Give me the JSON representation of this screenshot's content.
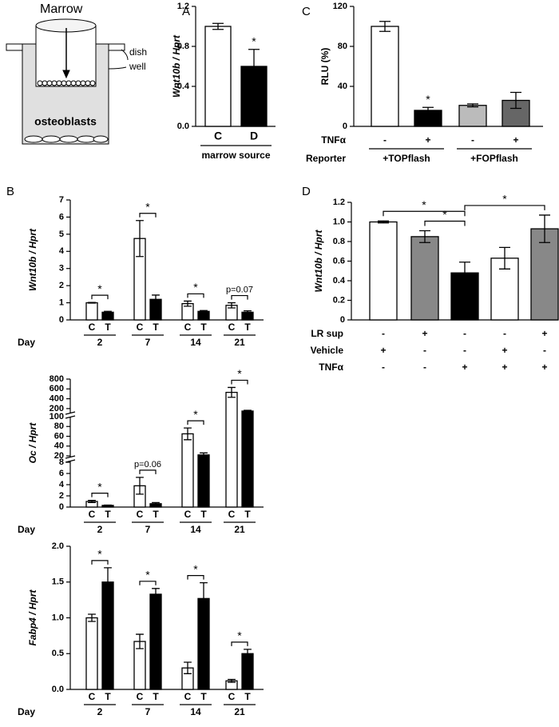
{
  "diagram": {
    "labels": {
      "marrow": "Marrow",
      "dish": "dish",
      "well": "well",
      "osteoblasts": "osteoblasts"
    }
  },
  "chart_data": [
    {
      "panel": "A",
      "type": "bar",
      "ylabel": "Wnt10b / Hprt",
      "categories": [
        "C",
        "D"
      ],
      "values": [
        1.0,
        0.6
      ],
      "errors": [
        0.03,
        0.17
      ],
      "colors": [
        "#ffffff",
        "#000000"
      ],
      "ylim": [
        0,
        1.2
      ],
      "yticks": [
        {
          "value": 0,
          "label": "0.0"
        },
        0.4,
        0.8,
        1.2
      ],
      "xlabel": "marrow source",
      "annotations": [
        {
          "text": "*",
          "at": 1
        }
      ]
    },
    {
      "panel": "C",
      "type": "bar",
      "ylabel": "RLU (%)",
      "values": [
        100,
        16,
        21,
        26
      ],
      "errors": [
        5,
        3,
        1.5,
        8
      ],
      "colors": [
        "#ffffff",
        "#000000",
        "#bbbbbb",
        "#666666"
      ],
      "ylim": [
        0,
        120
      ],
      "yticks": [
        0,
        40,
        80,
        120
      ],
      "rows": [
        {
          "label": "TNFα",
          "values": [
            "-",
            "+",
            "-",
            "+"
          ]
        }
      ],
      "groups": {
        "label": "Reporter",
        "names": [
          "+TOPflash",
          "+FOPflash"
        ]
      },
      "annotations": [
        {
          "text": "*",
          "at": 1
        }
      ]
    },
    {
      "panel": "B",
      "type": "grouped_bar",
      "ylabel": "Wnt10b / Hprt",
      "group_title": "Day",
      "groups": [
        "2",
        "7",
        "14",
        "21"
      ],
      "series": [
        {
          "name": "C",
          "color": "#ffffff",
          "values": [
            1.0,
            4.75,
            0.95,
            0.85
          ],
          "errors": [
            0.02,
            1.05,
            0.15,
            0.15
          ]
        },
        {
          "name": "T",
          "color": "#000000",
          "values": [
            0.45,
            1.2,
            0.5,
            0.45
          ],
          "errors": [
            0.05,
            0.25,
            0.05,
            0.08
          ]
        }
      ],
      "ylim": [
        0,
        7
      ],
      "yticks": [
        0,
        1,
        2,
        3,
        4,
        5,
        6,
        7
      ],
      "annotations": [
        "*",
        "*",
        "*",
        "p=0.07"
      ]
    },
    {
      "type": "grouped_bar",
      "ylabel": "Oc / Hprt",
      "group_title": "Day",
      "groups": [
        "2",
        "7",
        "14",
        "21"
      ],
      "series": [
        {
          "name": "C",
          "color": "#ffffff",
          "values": [
            1.0,
            3.8,
            65,
            530
          ],
          "errors": [
            0.2,
            1.5,
            12,
            100
          ]
        },
        {
          "name": "T",
          "color": "#000000",
          "values": [
            0.3,
            0.6,
            22,
            150
          ],
          "errors": [
            0.05,
            0.2,
            4,
            15
          ]
        }
      ],
      "y_segments": [
        {
          "ylim": [
            0,
            8
          ],
          "yticks": [
            0,
            2,
            4,
            6,
            8
          ]
        },
        {
          "ylim": [
            20,
            100
          ],
          "yticks": [
            20,
            40,
            60,
            80,
            100
          ]
        },
        {
          "ylim": [
            100,
            800
          ],
          "yticks": [
            200,
            400,
            600,
            800
          ]
        }
      ],
      "annotations": [
        "*",
        "p=0.06",
        "*",
        "*"
      ]
    },
    {
      "type": "grouped_bar",
      "ylabel": "Fabp4 / Hprt",
      "group_title": "Day",
      "groups": [
        "2",
        "7",
        "14",
        "21"
      ],
      "series": [
        {
          "name": "C",
          "color": "#ffffff",
          "values": [
            1.0,
            0.67,
            0.3,
            0.12
          ],
          "errors": [
            0.05,
            0.1,
            0.08,
            0.02
          ]
        },
        {
          "name": "T",
          "color": "#000000",
          "values": [
            1.5,
            1.33,
            1.27,
            0.5
          ],
          "errors": [
            0.2,
            0.08,
            0.22,
            0.06
          ]
        }
      ],
      "ylim": [
        0,
        2
      ],
      "yticks": [
        {
          "value": 0,
          "label": "0.0"
        },
        0.5,
        {
          "value": 1,
          "label": "1.0"
        },
        1.5,
        {
          "value": 2,
          "label": "2.0"
        }
      ],
      "annotations": [
        "*",
        "*",
        "*",
        "*"
      ]
    },
    {
      "panel": "D",
      "type": "bar",
      "ylabel": "Wnt10b / Hprt",
      "values": [
        1.0,
        0.85,
        0.48,
        0.63,
        0.93
      ],
      "errors": [
        0.01,
        0.06,
        0.11,
        0.11,
        0.14
      ],
      "colors": [
        "#ffffff",
        "#888888",
        "#000000",
        "#ffffff",
        "#888888"
      ],
      "ylim": [
        0,
        1.2
      ],
      "yticks": [
        0,
        0.2,
        0.4,
        0.6,
        0.8,
        {
          "value": 1,
          "label": "1.0"
        },
        1.2
      ],
      "rows": [
        {
          "label": "LR sup",
          "values": [
            "-",
            "+",
            "-",
            "-",
            "+"
          ]
        },
        {
          "label": "Vehicle",
          "values": [
            "+",
            "-",
            "-",
            "+",
            "-"
          ]
        },
        {
          "label": "TNFα",
          "values": [
            "-",
            "-",
            "+",
            "+",
            "+"
          ]
        }
      ],
      "annotations": [
        {
          "text": "*",
          "from": 0,
          "to": 2
        },
        {
          "text": "*",
          "from": 1,
          "to": 2
        },
        {
          "text": "*",
          "from": 2,
          "to": 4
        }
      ]
    }
  ]
}
